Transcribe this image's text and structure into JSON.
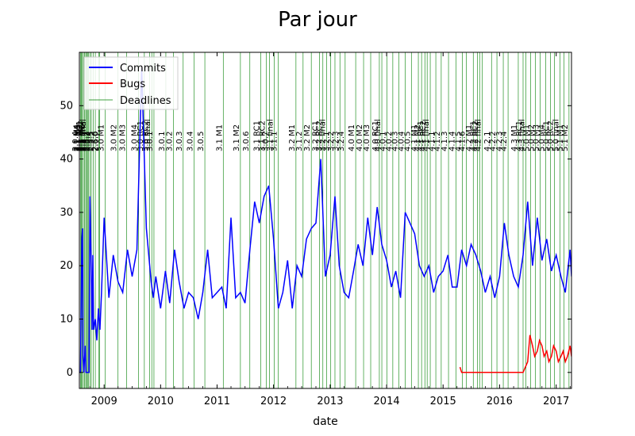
{
  "chart_data": {
    "type": "line",
    "title": "Par jour",
    "xlabel": "date",
    "ylabel": "",
    "xlim": [
      "2008-07-25",
      "2017-04-10"
    ],
    "ylim": [
      -3,
      60
    ],
    "x_ticks": [
      "2009",
      "2010",
      "2011",
      "2012",
      "2013",
      "2014",
      "2015",
      "2016",
      "2017"
    ],
    "y_ticks": [
      0,
      10,
      20,
      30,
      40,
      50
    ],
    "grid": false,
    "legend": {
      "placement": "top-left",
      "entries": [
        "Commits",
        "Bugs",
        "Deadlines"
      ]
    },
    "colors": {
      "commits": "#0000ff",
      "bugs": "#ff0000",
      "deadlines": "#008000"
    },
    "series": [
      {
        "name": "Commits",
        "x": [
          "2008-07-25",
          "2008-08-01",
          "2008-08-10",
          "2008-08-14",
          "2008-08-18",
          "2008-08-22",
          "2008-09-01",
          "2008-09-05",
          "2008-09-15",
          "2008-09-25",
          "2008-10-01",
          "2008-10-10",
          "2008-10-15",
          "2008-10-20",
          "2008-10-25",
          "2008-11-05",
          "2008-11-15",
          "2008-11-25",
          "2008-12-05",
          "2008-12-15",
          "2009-01-01",
          "2009-02-01",
          "2009-03-01",
          "2009-04-01",
          "2009-05-01",
          "2009-06-01",
          "2009-07-01",
          "2009-08-01",
          "2009-09-01",
          "2009-10-01",
          "2009-11-01",
          "2009-11-15",
          "2009-12-01",
          "2010-01-01",
          "2010-02-01",
          "2010-03-01",
          "2010-04-01",
          "2010-05-01",
          "2010-06-01",
          "2010-07-01",
          "2010-08-01",
          "2010-09-01",
          "2010-10-01",
          "2010-11-01",
          "2010-12-01",
          "2011-01-01",
          "2011-02-01",
          "2011-03-01",
          "2011-04-01",
          "2011-05-01",
          "2011-06-01",
          "2011-07-01",
          "2011-08-01",
          "2011-09-01",
          "2011-10-01",
          "2011-11-01",
          "2011-12-01",
          "2012-01-01",
          "2012-02-01",
          "2012-03-01",
          "2012-04-01",
          "2012-05-01",
          "2012-06-01",
          "2012-07-01",
          "2012-08-01",
          "2012-09-01",
          "2012-10-01",
          "2012-11-01",
          "2012-12-01",
          "2013-01-01",
          "2013-02-01",
          "2013-03-01",
          "2013-04-01",
          "2013-05-01",
          "2013-06-01",
          "2013-07-01",
          "2013-08-01",
          "2013-09-01",
          "2013-10-01",
          "2013-11-01",
          "2013-12-01",
          "2014-01-01",
          "2014-02-01",
          "2014-03-01",
          "2014-04-01",
          "2014-05-01",
          "2014-06-01",
          "2014-07-01",
          "2014-08-01",
          "2014-09-01",
          "2014-10-01",
          "2014-11-01",
          "2014-12-01",
          "2015-01-01",
          "2015-02-01",
          "2015-03-01",
          "2015-04-01",
          "2015-05-01",
          "2015-06-01",
          "2015-07-01",
          "2015-08-01",
          "2015-09-01",
          "2015-10-01",
          "2015-11-01",
          "2015-12-01",
          "2016-01-01",
          "2016-02-01",
          "2016-03-01",
          "2016-04-01",
          "2016-05-01",
          "2016-06-01",
          "2016-07-01",
          "2016-08-01",
          "2016-09-01",
          "2016-10-01",
          "2016-11-01",
          "2016-12-01",
          "2017-01-01",
          "2017-02-01",
          "2017-03-01",
          "2017-04-01",
          "2017-04-10"
        ],
        "values": [
          0,
          0,
          25,
          27,
          3,
          0,
          5,
          0,
          0,
          0,
          33,
          19,
          8,
          22,
          8,
          10,
          6,
          12,
          8,
          15,
          29,
          14,
          22,
          17,
          15,
          23,
          18,
          23,
          57,
          27,
          17,
          14,
          18,
          12,
          19,
          13,
          23,
          17,
          12,
          15,
          14,
          10,
          15,
          23,
          14,
          15,
          16,
          12,
          29,
          14,
          15,
          13,
          23,
          32,
          28,
          33,
          35,
          25,
          12,
          15,
          21,
          12,
          20,
          18,
          25,
          27,
          28,
          40,
          18,
          22,
          33,
          20,
          15,
          14,
          19,
          24,
          20,
          29,
          22,
          31,
          24,
          21,
          16,
          19,
          14,
          30,
          28,
          26,
          20,
          18,
          20,
          15,
          18,
          19,
          22,
          16,
          16,
          23,
          20,
          24,
          22,
          19,
          15,
          18,
          14,
          18,
          28,
          22,
          18,
          16,
          22,
          32,
          20,
          29,
          21,
          25,
          19,
          22,
          18,
          15,
          23,
          18
        ]
      },
      {
        "name": "Bugs",
        "x": [
          "2015-04-20",
          "2015-05-01",
          "2015-06-01",
          "2015-07-01",
          "2015-08-01",
          "2015-09-01",
          "2015-10-01",
          "2015-11-01",
          "2015-12-01",
          "2016-01-01",
          "2016-02-01",
          "2016-03-01",
          "2016-04-01",
          "2016-05-01",
          "2016-06-01",
          "2016-07-01",
          "2016-07-15",
          "2016-08-01",
          "2016-08-15",
          "2016-09-01",
          "2016-09-15",
          "2016-10-01",
          "2016-10-15",
          "2016-11-01",
          "2016-11-15",
          "2016-12-01",
          "2016-12-15",
          "2017-01-01",
          "2017-01-15",
          "2017-02-01",
          "2017-02-15",
          "2017-03-01",
          "2017-03-15",
          "2017-04-01",
          "2017-04-10"
        ],
        "values": [
          1,
          0,
          0,
          0,
          0,
          0,
          0,
          0,
          0,
          0,
          0,
          0,
          0,
          0,
          0,
          2,
          7,
          5,
          3,
          4,
          6,
          5,
          3,
          4,
          2,
          3,
          5,
          4,
          2,
          3,
          4,
          2,
          3,
          5,
          3
        ]
      }
    ],
    "deadlines": [
      {
        "date": "2008-07-25",
        "label": "2.0.4"
      },
      {
        "date": "2008-08-02",
        "label": "2.1 M4"
      },
      {
        "date": "2008-08-06",
        "label": "2.1 M5"
      },
      {
        "date": "2008-08-12",
        "label": "2.1 M3"
      },
      {
        "date": "2008-08-20",
        "label": "2.1 RC1"
      },
      {
        "date": "2008-08-27",
        "label": "2.1 RC2"
      },
      {
        "date": "2008-09-04",
        "label": "2.5 M2"
      },
      {
        "date": "2008-09-10",
        "label": "2.5 M6"
      },
      {
        "date": "2008-09-15",
        "label": "2.5 final"
      },
      {
        "date": "2008-09-22",
        "label": "2.5.1"
      },
      {
        "date": "2008-10-01",
        "label": "2.5.2"
      },
      {
        "date": "2008-10-10",
        "label": "2.5.3"
      },
      {
        "date": "2008-10-22",
        "label": "2.5.4"
      },
      {
        "date": "2008-11-05",
        "label": "2.5.5"
      },
      {
        "date": "2008-11-28",
        "label": "2.5.6"
      },
      {
        "date": "2008-12-02",
        "label": "2.6.0"
      },
      {
        "date": "2009-01-08",
        "label": "3.0 M1"
      },
      {
        "date": "2009-04-01",
        "label": "3.0 M2"
      },
      {
        "date": "2009-05-27",
        "label": "3.0 M3"
      },
      {
        "date": "2009-08-12",
        "label": "3.0 M4"
      },
      {
        "date": "2009-09-18",
        "label": "3.0 RC1"
      },
      {
        "date": "2009-10-22",
        "label": "3.0 RC2"
      },
      {
        "date": "2009-11-05",
        "label": "3.0 final"
      },
      {
        "date": "2009-11-19",
        "label": "3.0.1"
      },
      {
        "date": "2010-02-04",
        "label": "3.0.1"
      },
      {
        "date": "2010-03-25",
        "label": "3.0.2"
      },
      {
        "date": "2010-05-27",
        "label": "3.0.3"
      },
      {
        "date": "2010-08-05",
        "label": "3.0.4"
      },
      {
        "date": "2010-10-14",
        "label": "3.0.5"
      },
      {
        "date": "2011-02-10",
        "label": "3.1 M1"
      },
      {
        "date": "2011-06-01",
        "label": "3.1 M2"
      },
      {
        "date": "2011-08-01",
        "label": "3.0.6"
      },
      {
        "date": "2011-10-10",
        "label": "3.1 RC1"
      },
      {
        "date": "2011-11-15",
        "label": "3.1 RC2"
      },
      {
        "date": "2011-12-05",
        "label": "3.0.7"
      },
      {
        "date": "2012-01-05",
        "label": "3.1 final"
      },
      {
        "date": "2012-02-01",
        "label": "3.1.1"
      },
      {
        "date": "2012-05-25",
        "label": "3.2 M1"
      },
      {
        "date": "2012-07-10",
        "label": "3.1.2"
      },
      {
        "date": "2012-09-01",
        "label": "3.2 M2"
      },
      {
        "date": "2012-10-25",
        "label": "3.2 RC1"
      },
      {
        "date": "2012-11-15",
        "label": "3.2 RC2"
      },
      {
        "date": "2012-12-10",
        "label": "3.2 final"
      },
      {
        "date": "2013-01-05",
        "label": "3.2.1"
      },
      {
        "date": "2013-02-01",
        "label": "3.2.2"
      },
      {
        "date": "2013-03-05",
        "label": "3.2.3"
      },
      {
        "date": "2013-04-08",
        "label": "3.2.4"
      },
      {
        "date": "2013-06-15",
        "label": "4.0 M1"
      },
      {
        "date": "2013-08-05",
        "label": "4.0 M2"
      },
      {
        "date": "2013-09-20",
        "label": "4.0 M3"
      },
      {
        "date": "2013-11-15",
        "label": "4.0 RC1"
      },
      {
        "date": "2013-12-01",
        "label": "4.0 final"
      },
      {
        "date": "2014-01-02",
        "label": "4.0.1"
      },
      {
        "date": "2014-02-10",
        "label": "4.0.2"
      },
      {
        "date": "2014-03-20",
        "label": "4.0.3"
      },
      {
        "date": "2014-05-01",
        "label": "4.0.4"
      },
      {
        "date": "2014-06-10",
        "label": "4.0.5"
      },
      {
        "date": "2014-07-25",
        "label": "4.1 M1"
      },
      {
        "date": "2014-08-15",
        "label": "4.1 M2"
      },
      {
        "date": "2014-09-05",
        "label": "4.1 RC1"
      },
      {
        "date": "2014-09-20",
        "label": "4.1 RC2"
      },
      {
        "date": "2014-10-10",
        "label": "4.1 final"
      },
      {
        "date": "2014-11-15",
        "label": "4.1.1"
      },
      {
        "date": "2014-12-20",
        "label": "4.1.2"
      },
      {
        "date": "2015-02-05",
        "label": "4.1.3"
      },
      {
        "date": "2015-03-25",
        "label": "4.1.4"
      },
      {
        "date": "2015-05-05",
        "label": "4.1.5"
      },
      {
        "date": "2015-06-01",
        "label": "4.1.6"
      },
      {
        "date": "2015-07-15",
        "label": "4.2 M1"
      },
      {
        "date": "2015-08-10",
        "label": "4.2 RC1"
      },
      {
        "date": "2015-08-25",
        "label": "4.2 RC2"
      },
      {
        "date": "2015-09-10",
        "label": "4.2 final"
      },
      {
        "date": "2015-11-10",
        "label": "4.2.1"
      },
      {
        "date": "2015-12-15",
        "label": "4.2.2"
      },
      {
        "date": "2016-01-25",
        "label": "4.2.3"
      },
      {
        "date": "2016-02-25",
        "label": "4.2.4"
      },
      {
        "date": "2016-05-01",
        "label": "4.3 M1"
      },
      {
        "date": "2016-06-01",
        "label": "4.3 RC1"
      },
      {
        "date": "2016-06-20",
        "label": "4.3 final"
      },
      {
        "date": "2016-07-20",
        "label": "5.0 M1"
      },
      {
        "date": "2016-08-20",
        "label": "5.0 M2"
      },
      {
        "date": "2016-09-20",
        "label": "5.0 M3"
      },
      {
        "date": "2016-10-25",
        "label": "5.0 M4"
      },
      {
        "date": "2016-11-25",
        "label": "5.0 RC1"
      },
      {
        "date": "2016-12-20",
        "label": "5.0 RC2"
      },
      {
        "date": "2017-01-25",
        "label": "5.0 final"
      },
      {
        "date": "2017-02-20",
        "label": "5.1 M1"
      },
      {
        "date": "2017-03-25",
        "label": "5.1 M2"
      }
    ]
  }
}
